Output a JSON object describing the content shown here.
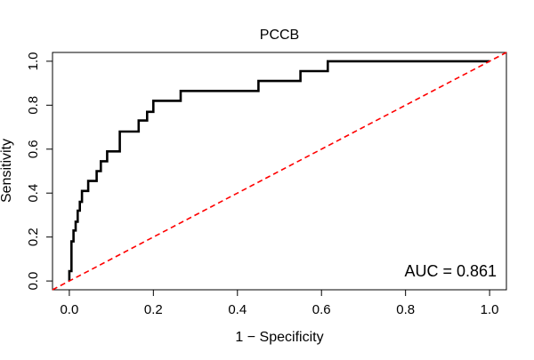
{
  "chart_data": {
    "type": "line",
    "title": "PCCB",
    "xlabel": "1 − Specificity",
    "ylabel": "Sensitivity",
    "xlim": [
      -0.04,
      1.04
    ],
    "ylim": [
      -0.04,
      1.04
    ],
    "x_ticks": [
      0.0,
      0.2,
      0.4,
      0.6,
      0.8,
      1.0
    ],
    "x_tick_labels": [
      "0.0",
      "0.2",
      "0.4",
      "0.6",
      "0.8",
      "1.0"
    ],
    "y_ticks": [
      0.0,
      0.2,
      0.4,
      0.6,
      0.8,
      1.0
    ],
    "y_tick_labels": [
      "0.0",
      "0.2",
      "0.4",
      "0.6",
      "0.8",
      "1.0"
    ],
    "grid": false,
    "annotation": "AUC = 0.861",
    "series": [
      {
        "color": "#000000",
        "style": "solid",
        "x": [
          0,
          0,
          0.005,
          0.005,
          0.01,
          0.01,
          0.015,
          0.015,
          0.02,
          0.02,
          0.025,
          0.025,
          0.03,
          0.03,
          0.045,
          0.045,
          0.065,
          0.065,
          0.075,
          0.075,
          0.09,
          0.09,
          0.12,
          0.12,
          0.165,
          0.165,
          0.185,
          0.185,
          0.2,
          0.2,
          0.265,
          0.265,
          0.45,
          0.45,
          0.55,
          0.55,
          0.615,
          0.615,
          1.0
        ],
        "y": [
          0,
          0.045,
          0.045,
          0.18,
          0.18,
          0.23,
          0.23,
          0.27,
          0.27,
          0.32,
          0.32,
          0.36,
          0.36,
          0.41,
          0.41,
          0.455,
          0.455,
          0.5,
          0.5,
          0.545,
          0.545,
          0.59,
          0.59,
          0.68,
          0.68,
          0.73,
          0.73,
          0.77,
          0.77,
          0.82,
          0.82,
          0.865,
          0.865,
          0.91,
          0.91,
          0.955,
          0.955,
          1.0,
          1.0
        ]
      },
      {
        "color": "#ff0000",
        "style": "dashed",
        "x": [
          -0.04,
          1.04
        ],
        "y": [
          -0.04,
          1.04
        ]
      }
    ]
  }
}
